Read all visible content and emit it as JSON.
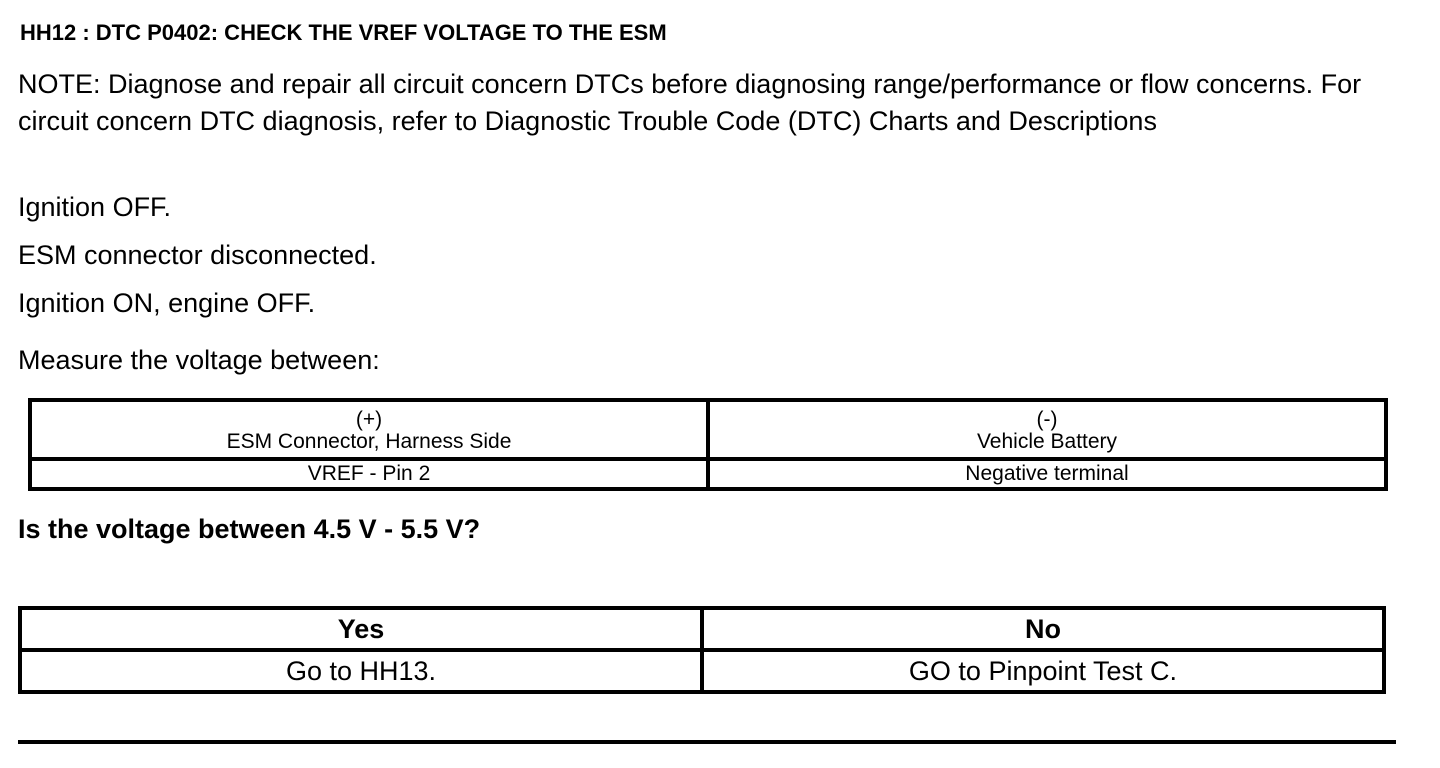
{
  "title": "HH12 : DTC P0402: CHECK THE VREF VOLTAGE TO THE ESM",
  "note": "NOTE: Diagnose and repair all circuit concern DTCs before diagnosing range/performance or flow concerns. For circuit concern DTC diagnosis, refer to Diagnostic Trouble Code (DTC) Charts and Descriptions",
  "steps": [
    "Ignition OFF.",
    "ESM connector disconnected.",
    "Ignition ON, engine OFF."
  ],
  "measure": "Measure the voltage between:",
  "measure_table": {
    "headers": [
      {
        "sign": "(+)",
        "label": "ESM Connector, Harness Side"
      },
      {
        "sign": "(-)",
        "label": "Vehicle Battery"
      }
    ],
    "row": [
      "VREF - Pin 2",
      "Negative terminal"
    ]
  },
  "question": "Is the voltage between 4.5 V - 5.5 V?",
  "answer_table": {
    "headers": [
      "Yes",
      "No"
    ],
    "row": [
      "Go to HH13.",
      "GO to Pinpoint Test C."
    ]
  }
}
